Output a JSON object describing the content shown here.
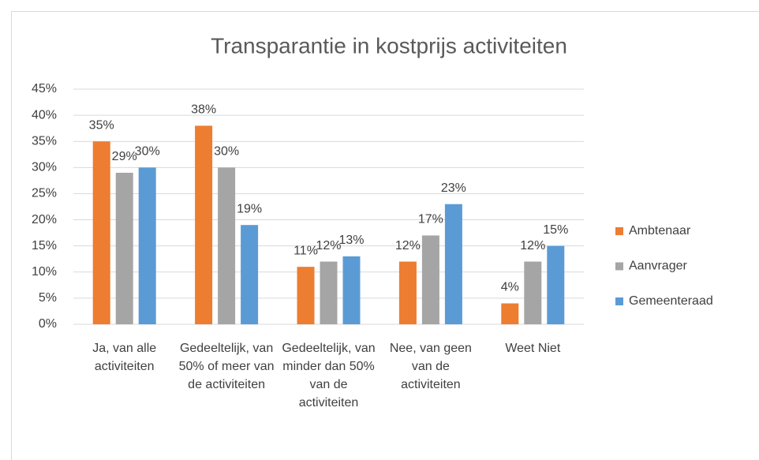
{
  "chart_data": {
    "type": "bar",
    "title": "Transparantie in kostprijs activiteiten",
    "categories": [
      "Ja, van alle activiteiten",
      "Gedeeltelijk, van 50% of meer van de activiteiten",
      "Gedeeltelijk, van minder dan 50% van de activiteiten",
      "Nee, van geen van de activiteiten",
      "Weet Niet"
    ],
    "series": [
      {
        "name": "Ambtenaar",
        "color": "#ed7d31",
        "values": [
          35,
          38,
          11,
          12,
          4
        ],
        "value_labels": [
          "35%",
          "38%",
          "11%",
          "12%",
          "4%"
        ]
      },
      {
        "name": "Aanvrager",
        "color": "#a5a5a5",
        "values": [
          29,
          30,
          12,
          17,
          12
        ],
        "value_labels": [
          "29%",
          "30%",
          "12%",
          "17%",
          "12%"
        ]
      },
      {
        "name": "Gemeenteraad",
        "color": "#5b9bd5",
        "values": [
          30,
          19,
          13,
          23,
          15
        ],
        "value_labels": [
          "30%",
          "19%",
          "13%",
          "23%",
          "15%"
        ]
      }
    ],
    "ylim": [
      0,
      45
    ],
    "yticks": [
      {
        "value": 0,
        "label": "0%"
      },
      {
        "value": 5,
        "label": "5%"
      },
      {
        "value": 10,
        "label": "10%"
      },
      {
        "value": 15,
        "label": "15%"
      },
      {
        "value": 20,
        "label": "20%"
      },
      {
        "value": 25,
        "label": "25%"
      },
      {
        "value": 30,
        "label": "30%"
      },
      {
        "value": 35,
        "label": "35%"
      },
      {
        "value": 40,
        "label": "40%"
      },
      {
        "value": 45,
        "label": "45%"
      }
    ],
    "grid": true,
    "legend": "right"
  }
}
